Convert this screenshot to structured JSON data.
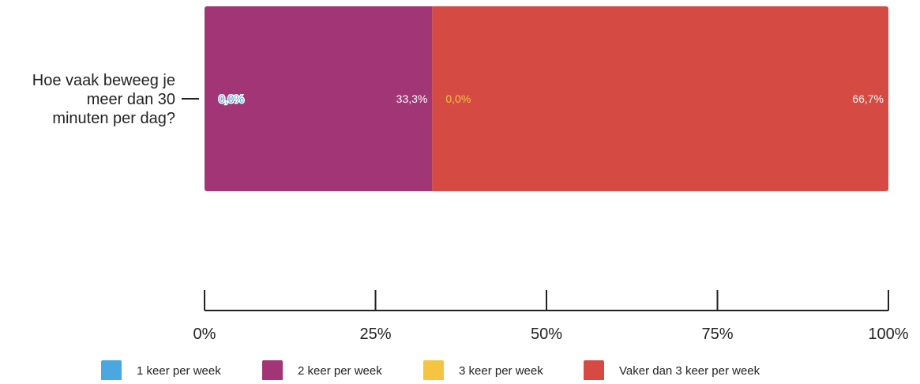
{
  "chart_data": {
    "type": "bar",
    "orientation": "horizontal",
    "stacked": true,
    "normalized_percent": true,
    "categories": [
      "Hoe vaak beweeg je meer dan 30 minuten per dag?"
    ],
    "series": [
      {
        "name": "1 keer per week",
        "values": [
          0.0
        ],
        "label": "0,0%",
        "color": "#4aa7e0"
      },
      {
        "name": "2 keer per week",
        "values": [
          33.3
        ],
        "label": "33,3%",
        "color": "#a23575"
      },
      {
        "name": "3 keer per week",
        "values": [
          0.0
        ],
        "label": "0,0%",
        "color": "#f5c542"
      },
      {
        "name": "Vaker dan 3 keer per week",
        "values": [
          66.7
        ],
        "label": "66,7%",
        "color": "#d54a42"
      }
    ],
    "xlim": [
      0,
      100
    ],
    "x_ticks": [
      0,
      25,
      50,
      75,
      100
    ],
    "x_tick_labels": [
      "0%",
      "25%",
      "50%",
      "75%",
      "100%"
    ],
    "category_label_lines": [
      "Hoe vaak beweeg je",
      "meer dan 30",
      "minuten per dag?"
    ],
    "legend": {
      "position": "bottom",
      "items": [
        "1 keer per week",
        "2 keer per week",
        "3 keer per week",
        "Vaker dan 3 keer per week"
      ]
    },
    "grid": false
  }
}
